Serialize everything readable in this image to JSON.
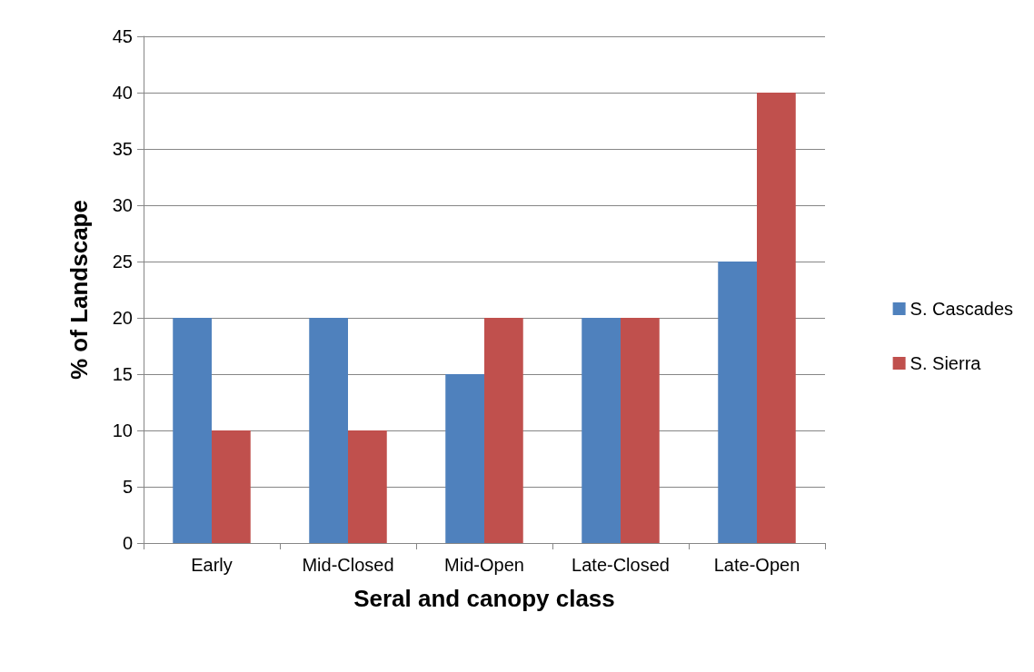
{
  "chart_data": {
    "type": "bar",
    "xlabel": "Seral and canopy class",
    "ylabel": "% of Landscape",
    "categories": [
      "Early",
      "Mid-Closed",
      "Mid-Open",
      "Late-Closed",
      "Late-Open"
    ],
    "series": [
      {
        "name": "S. Cascades",
        "color": "#4f81bd",
        "values": [
          20,
          20,
          15,
          20,
          25
        ]
      },
      {
        "name": "S. Sierra",
        "color": "#c0504d",
        "values": [
          10,
          10,
          20,
          20,
          40
        ]
      }
    ],
    "ylim": [
      0,
      45
    ],
    "yticks": [
      0,
      5,
      10,
      15,
      20,
      25,
      30,
      35,
      40,
      45
    ],
    "grid": "y",
    "legend": "right"
  }
}
